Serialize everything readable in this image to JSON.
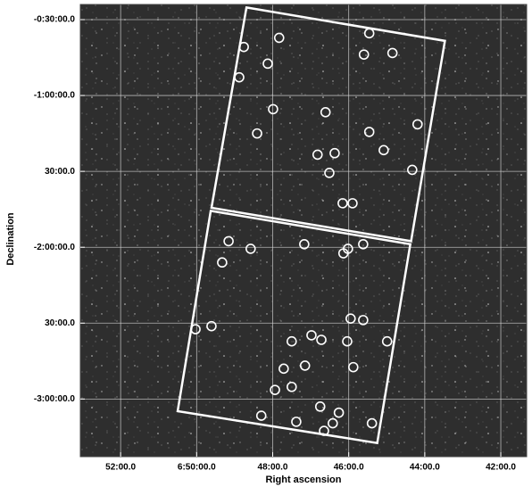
{
  "chart_data": {
    "type": "scatter",
    "x_label": "Right ascension",
    "y_label": "Declination",
    "xlim": [
      53.06,
      41.32
    ],
    "ylim": [
      -3.38,
      -0.4
    ],
    "xticks": [
      {
        "value": 52,
        "label": "52:00.0"
      },
      {
        "value": 50,
        "label": "6:50:00.0"
      },
      {
        "value": 48,
        "label": "48:00.0"
      },
      {
        "value": 46,
        "label": "46:00.0"
      },
      {
        "value": 44,
        "label": "44:00.0"
      },
      {
        "value": 42,
        "label": "42:00.0"
      }
    ],
    "yticks": [
      {
        "value": -0.5,
        "label": "-0:30:00.0"
      },
      {
        "value": -1,
        "label": "-1:00:00.0"
      },
      {
        "value": -1.5,
        "label": "30:00.0"
      },
      {
        "value": -2,
        "label": "-2:00:00.0"
      },
      {
        "value": -2.5,
        "label": "30:00.0"
      },
      {
        "value": -3,
        "label": "-3:00:00.0"
      }
    ],
    "grid": true,
    "color": "#ffffff",
    "x": [
      47.83,
      45.46,
      48.76,
      48.13,
      45.6,
      44.85,
      48.88,
      47.99,
      46.61,
      48.41,
      45.46,
      44.19,
      46.82,
      46.37,
      45.08,
      46.51,
      44.33,
      46.16,
      45.9,
      49.16,
      48.58,
      49.33,
      47.17,
      45.62,
      46.02,
      46.14,
      45.95,
      45.62,
      50.03,
      49.61,
      47.5,
      46.98,
      46.72,
      46.04,
      44.99,
      47.71,
      47.15,
      45.88,
      47.94,
      47.5,
      46.75,
      46.26,
      48.3,
      47.38,
      46.42,
      45.39,
      46.65
    ],
    "values": [
      -0.62,
      -0.59,
      -0.68,
      -0.79,
      -0.73,
      -0.72,
      -0.88,
      -1.09,
      -1.11,
      -1.25,
      -1.24,
      -1.19,
      -1.39,
      -1.38,
      -1.36,
      -1.51,
      -1.49,
      -1.71,
      -1.71,
      -1.96,
      -2.01,
      -2.1,
      -1.98,
      -1.98,
      -2.01,
      -2.04,
      -2.47,
      -2.48,
      -2.54,
      -2.52,
      -2.62,
      -2.58,
      -2.61,
      -2.62,
      -2.62,
      -2.8,
      -2.78,
      -2.79,
      -2.94,
      -2.92,
      -3.05,
      -3.09,
      -3.11,
      -3.15,
      -3.16,
      -3.16,
      -3.21
    ],
    "polygons": [
      {
        "x": [
          48.69,
          43.47,
          44.36,
          49.61
        ],
        "values": [
          -0.42,
          -0.64,
          -1.96,
          -1.74
        ]
      },
      {
        "x": [
          49.63,
          44.38,
          45.25,
          50.5
        ],
        "values": [
          -1.76,
          -1.98,
          -3.29,
          -3.08
        ]
      }
    ]
  }
}
